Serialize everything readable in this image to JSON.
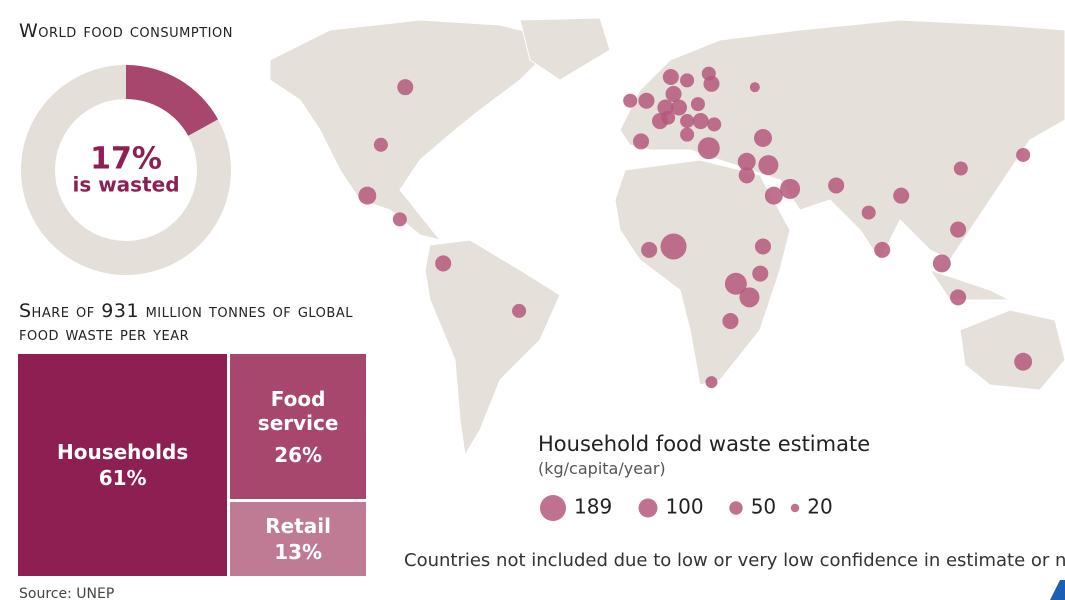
{
  "chart_data": [
    {
      "type": "donut",
      "title": "World food consumption",
      "values": [
        17
      ],
      "value_labels": [
        "17%"
      ],
      "annotation": "is wasted",
      "color": "#a8476e",
      "rest_color": "#e4dfd8"
    },
    {
      "type": "treemap",
      "title": "Share of 931 million tonnes of global food waste per year",
      "categories": [
        "Households",
        "Food service",
        "Retail"
      ],
      "values": [
        61,
        26,
        13
      ],
      "value_labels": [
        "61%",
        "26%",
        "13%"
      ],
      "colors": [
        "#8e1f52",
        "#a8476e",
        "#c07b94"
      ]
    },
    {
      "type": "bubble_map",
      "legend_title": "Household food waste estimate",
      "legend_subtitle": "(kg/capita/year)",
      "size_legend": [
        189,
        100,
        50,
        20
      ],
      "color": "#b5587b",
      "note": "Countries not included due to low or very low confidence in estimate or no data",
      "source": "Source: UNEP",
      "lon": [
        -94,
        -103,
        -108,
        -96,
        -80,
        -52,
        -11,
        -5,
        4,
        10,
        18,
        19,
        35,
        5,
        2,
        7,
        14,
        0,
        3,
        10,
        15,
        20,
        -7,
        10,
        18,
        38,
        32,
        32,
        40,
        42,
        48,
        65,
        77,
        89,
        111,
        134,
        5,
        -4,
        38,
        82,
        110,
        37,
        28,
        33,
        104,
        110,
        26,
        19,
        134
      ],
      "lat": [
        56,
        39,
        24,
        17,
        4,
        -10,
        52,
        52,
        59,
        58,
        60,
        57,
        56,
        54,
        50,
        50,
        51,
        46,
        47,
        46,
        46,
        45,
        40,
        42,
        38,
        41,
        34,
        30,
        33,
        24,
        26,
        27,
        19,
        24,
        32,
        36,
        9,
        8,
        9,
        8,
        14,
        1,
        -2,
        -6,
        4,
        -6,
        -13,
        -31,
        -25
      ],
      "values": [
        72,
        55,
        90,
        55,
        72,
        55,
        55,
        72,
        72,
        55,
        55,
        72,
        28,
        72,
        72,
        72,
        55,
        72,
        55,
        55,
        72,
        55,
        72,
        55,
        135,
        90,
        90,
        72,
        112,
        90,
        112,
        72,
        55,
        72,
        55,
        55,
        189,
        72,
        72,
        72,
        72,
        72,
        135,
        112,
        90,
        72,
        72,
        40,
        90
      ]
    }
  ]
}
